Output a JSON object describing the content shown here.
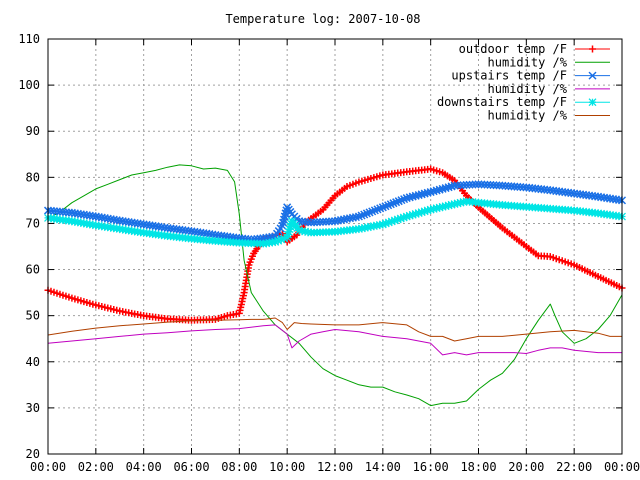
{
  "chart_data": {
    "type": "line",
    "title": "Temperature log: 2007-10-08",
    "xlabel": "",
    "ylabel": "",
    "x_ticks": [
      "00:00",
      "02:00",
      "04:00",
      "06:00",
      "08:00",
      "10:00",
      "12:00",
      "14:00",
      "16:00",
      "18:00",
      "20:00",
      "22:00",
      "00:00"
    ],
    "y_ticks": [
      "20",
      "30",
      "40",
      "50",
      "60",
      "70",
      "80",
      "90",
      "100",
      "110"
    ],
    "xlim": [
      0,
      24
    ],
    "ylim": [
      20,
      110
    ],
    "grid": true,
    "legend_position": "top-right",
    "series": [
      {
        "name": "outdoor temp /F",
        "color": "#ff0000",
        "marker": "plus",
        "x": [
          0,
          1,
          2,
          3,
          4,
          5,
          6,
          7,
          7.5,
          8,
          8.2,
          8.4,
          8.6,
          8.8,
          9,
          9.4,
          9.8,
          10,
          10.4,
          10.8,
          11.5,
          12,
          12.5,
          13,
          14,
          15,
          16,
          16.5,
          17,
          17.5,
          18,
          19,
          20,
          20.5,
          21,
          22,
          23,
          24
        ],
        "y": [
          55.5,
          53.8,
          52.3,
          51,
          50,
          49.3,
          49,
          49.2,
          50,
          50.5,
          55,
          61,
          63.5,
          65,
          66.5,
          67.2,
          67.8,
          66,
          67.5,
          70.3,
          73,
          76,
          78,
          79,
          80.5,
          81.2,
          81.8,
          81,
          79.3,
          76,
          73.5,
          69,
          65,
          63,
          62.8,
          61,
          58.5,
          56
        ]
      },
      {
        "name": "humidity /%",
        "color": "#00a000",
        "marker": "none",
        "x": [
          0,
          0.5,
          1,
          1.5,
          2,
          2.5,
          3,
          3.5,
          4,
          4.5,
          5,
          5.5,
          6,
          6.5,
          7,
          7.5,
          7.8,
          8,
          8.2,
          8.5,
          9,
          9.5,
          10,
          10.5,
          11,
          11.5,
          12,
          12.5,
          13,
          13.5,
          14,
          14.5,
          15,
          15.5,
          16,
          16.5,
          17,
          17.5,
          18,
          18.5,
          19,
          19.5,
          20,
          20.5,
          21,
          21.2,
          21.5,
          22,
          22.5,
          23,
          23.5,
          24
        ],
        "y": [
          71,
          72.5,
          74.5,
          76,
          77.5,
          78.5,
          79.5,
          80.5,
          81,
          81.5,
          82.2,
          82.7,
          82.5,
          81.8,
          82,
          81.5,
          79,
          72,
          62,
          55,
          51,
          48,
          46,
          44,
          41,
          38.5,
          37,
          36,
          35,
          34.5,
          34.5,
          33.5,
          32.8,
          32,
          30.5,
          31,
          31,
          31.5,
          34,
          36,
          37.5,
          40.5,
          45,
          49,
          52.5,
          50,
          46.5,
          44,
          45,
          47,
          50,
          54.5
        ]
      },
      {
        "name": "upstairs temp /F",
        "color": "#1a70e6",
        "marker": "cross",
        "x": [
          0,
          1,
          2,
          3,
          4,
          5,
          6,
          7,
          8,
          8.5,
          9,
          9.5,
          9.8,
          10,
          10.2,
          10.5,
          11,
          12,
          13,
          14,
          15,
          16,
          17,
          18,
          19,
          20,
          21,
          22,
          23,
          24
        ],
        "y": [
          72.8,
          72.3,
          71.5,
          70.6,
          69.8,
          69,
          68.3,
          67.5,
          66.8,
          66.5,
          66.8,
          67.2,
          69.5,
          73.5,
          72,
          70.5,
          70.2,
          70.5,
          71.5,
          73.5,
          75.5,
          76.8,
          78.2,
          78.5,
          78.2,
          77.8,
          77.2,
          76.5,
          75.8,
          75
        ]
      },
      {
        "name": "humidity /%",
        "color": "#c000c0",
        "marker": "none",
        "x": [
          0,
          1,
          2,
          3,
          4,
          5,
          6,
          7,
          8,
          9,
          9.5,
          10,
          10.2,
          10.5,
          11,
          11.5,
          12,
          13,
          14,
          15,
          16,
          16.5,
          17,
          17.5,
          18,
          19,
          19.5,
          20,
          20.5,
          21,
          21.5,
          22,
          23,
          24
        ],
        "y": [
          44,
          44.5,
          45,
          45.5,
          46,
          46.3,
          46.7,
          47,
          47.2,
          47.8,
          48,
          46,
          43,
          44.5,
          46,
          46.5,
          47,
          46.5,
          45.5,
          45,
          44,
          41.5,
          42,
          41.5,
          42,
          42,
          42,
          41.8,
          42.5,
          43,
          43,
          42.5,
          42,
          42
        ]
      },
      {
        "name": "downstairs temp /F",
        "color": "#00e5e5",
        "marker": "star",
        "x": [
          0,
          1,
          2,
          3,
          4,
          5,
          6,
          7,
          8,
          9,
          9.5,
          10,
          10.2,
          10.5,
          11,
          12,
          13,
          14,
          15,
          16,
          17,
          17.5,
          18,
          19,
          20,
          21,
          22,
          23,
          24
        ],
        "y": [
          71.2,
          70.5,
          69.6,
          68.8,
          68,
          67.3,
          66.7,
          66.2,
          65.8,
          65.6,
          66,
          67,
          70.5,
          68.5,
          68,
          68.2,
          68.8,
          69.8,
          71.5,
          73,
          74.2,
          74.8,
          74.5,
          74,
          73.6,
          73.2,
          72.8,
          72.2,
          71.5
        ]
      },
      {
        "name": "humidity /%",
        "color": "#b04000",
        "marker": "none",
        "x": [
          0,
          1,
          2,
          3,
          4,
          5,
          6,
          7,
          8,
          8.5,
          9,
          9.5,
          9.8,
          10,
          10.3,
          10.6,
          11,
          12,
          13,
          14,
          15,
          15.5,
          16,
          16.5,
          17,
          17.5,
          18,
          19,
          20,
          21,
          22,
          23,
          23.5,
          24
        ],
        "y": [
          45.8,
          46.6,
          47.3,
          47.8,
          48.2,
          48.6,
          48.9,
          49,
          49.1,
          49.2,
          49.2,
          49.5,
          48.5,
          47,
          48.5,
          48.3,
          48.2,
          48,
          48,
          48.5,
          48,
          46.5,
          45.5,
          45.5,
          44.5,
          45,
          45.5,
          45.5,
          46,
          46.5,
          46.8,
          46.2,
          45.5,
          45.5
        ]
      }
    ]
  }
}
